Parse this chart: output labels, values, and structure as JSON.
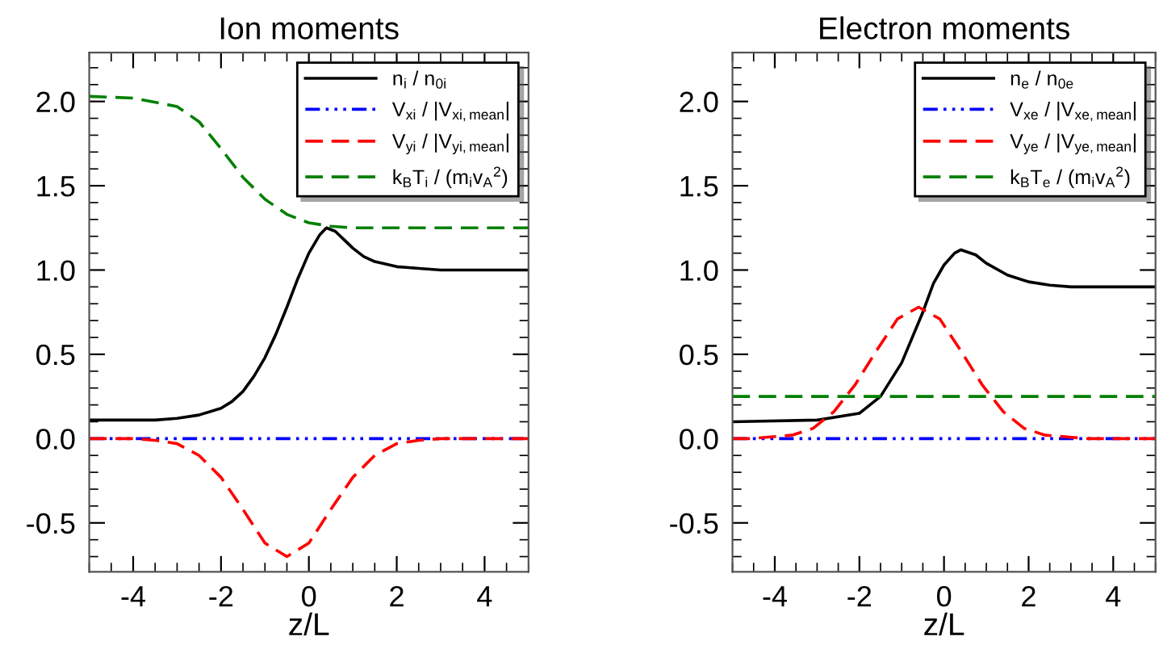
{
  "chart_data": [
    {
      "type": "line",
      "title": "Ion moments",
      "xlabel": "z/L",
      "xlim": [
        -5,
        5
      ],
      "xticks": [
        -4,
        -2,
        0,
        2,
        4
      ],
      "ylim": [
        -0.79,
        2.29
      ],
      "yticks": [
        {
          "value": -0.5,
          "label": "-0.5"
        },
        {
          "value": 0,
          "label": "0.0"
        },
        {
          "value": 0.5,
          "label": "0.5"
        },
        {
          "value": 1,
          "label": "1.0"
        },
        {
          "value": 1.5,
          "label": "1.5"
        },
        {
          "value": 2,
          "label": "2.0"
        }
      ],
      "grid": false,
      "legend": "top right",
      "series": [
        {
          "name": "n$_{i}$ / n$_{0i}$",
          "color": "#000000",
          "line_style": "solid",
          "x": [
            -5,
            -4,
            -3.5,
            -3,
            -2.5,
            -2,
            -1.75,
            -1.5,
            -1.25,
            -1,
            -0.75,
            -0.5,
            -0.25,
            0,
            0.25,
            0.4,
            0.6,
            0.8,
            1,
            1.25,
            1.5,
            2,
            2.5,
            3,
            5
          ],
          "values": [
            0.11,
            0.11,
            0.11,
            0.12,
            0.14,
            0.18,
            0.22,
            0.28,
            0.37,
            0.48,
            0.62,
            0.78,
            0.95,
            1.1,
            1.21,
            1.25,
            1.23,
            1.18,
            1.13,
            1.08,
            1.05,
            1.02,
            1.01,
            1.0,
            1.0
          ]
        },
        {
          "name": "V$_{xi}$ / |V$_{xi,mean}$|",
          "color": "#0000ff",
          "line_style": "dashdot",
          "x": [
            -5,
            5
          ],
          "values": [
            0,
            0
          ]
        },
        {
          "name": "V$_{yi}$ / |V$_{yi,mean}$|",
          "color": "#ff0000",
          "line_style": "dashed",
          "x": [
            -5,
            -4,
            -3.5,
            -3,
            -2.5,
            -2,
            -1.5,
            -1,
            -0.5,
            0,
            0.5,
            1,
            1.5,
            2,
            2.5,
            3,
            5
          ],
          "values": [
            0,
            0,
            -0.01,
            -0.03,
            -0.1,
            -0.23,
            -0.42,
            -0.62,
            -0.7,
            -0.62,
            -0.42,
            -0.23,
            -0.1,
            -0.03,
            -0.01,
            0,
            0
          ]
        },
        {
          "name": "k$_{B}$T$_{i}$ / (m$_{i}$v$_{A}$$^{2}$)",
          "color": "#008000",
          "line_style": "dashed",
          "x": [
            -5,
            -4,
            -3,
            -2.5,
            -2,
            -1.5,
            -1,
            -0.5,
            0,
            0.5,
            1,
            5
          ],
          "values": [
            2.03,
            2.02,
            1.97,
            1.88,
            1.72,
            1.55,
            1.42,
            1.33,
            1.28,
            1.26,
            1.25,
            1.25
          ]
        }
      ]
    },
    {
      "type": "line",
      "title": "Electron moments",
      "xlabel": "z/L",
      "xlim": [
        -5,
        5
      ],
      "xticks": [
        -4,
        -2,
        0,
        2,
        4
      ],
      "ylim": [
        -0.79,
        2.29
      ],
      "yticks": [
        {
          "value": -0.5,
          "label": "-0.5"
        },
        {
          "value": 0,
          "label": "0.0"
        },
        {
          "value": 0.5,
          "label": "0.5"
        },
        {
          "value": 1,
          "label": "1.0"
        },
        {
          "value": 1.5,
          "label": "1.5"
        },
        {
          "value": 2,
          "label": "2.0"
        }
      ],
      "grid": false,
      "legend": "top right",
      "series": [
        {
          "name": "n$_{e}$ / n$_{0e}$",
          "color": "#000000",
          "line_style": "solid",
          "x": [
            -5,
            -3,
            -2,
            -1.5,
            -1,
            -0.5,
            -0.25,
            0,
            0.25,
            0.4,
            0.75,
            1,
            1.5,
            2,
            2.5,
            3,
            5
          ],
          "values": [
            0.1,
            0.11,
            0.15,
            0.25,
            0.45,
            0.75,
            0.92,
            1.03,
            1.1,
            1.12,
            1.09,
            1.04,
            0.97,
            0.93,
            0.91,
            0.9,
            0.9
          ]
        },
        {
          "name": "V$_{xe}$ / |V$_{xe,mean}$|",
          "color": "#0000ff",
          "line_style": "dashdot",
          "x": [
            -5,
            5
          ],
          "values": [
            0,
            0
          ]
        },
        {
          "name": "V$_{ye}$ / |V$_{ye,mean}$|",
          "color": "#ff0000",
          "line_style": "dashed",
          "x": [
            -5,
            -4.6,
            -4.1,
            -3.6,
            -3.1,
            -2.6,
            -2.1,
            -1.6,
            -1.1,
            -0.6,
            -0.1,
            0.4,
            0.9,
            1.4,
            1.9,
            2.4,
            2.9,
            3.4,
            5
          ],
          "values": [
            0,
            0,
            0.01,
            0.02,
            0.06,
            0.16,
            0.32,
            0.52,
            0.71,
            0.78,
            0.71,
            0.52,
            0.32,
            0.16,
            0.06,
            0.02,
            0.01,
            0,
            0
          ]
        },
        {
          "name": "k$_{B}$T$_{e}$ / (m$_{i}$v$_{A}$$^{2}$)",
          "color": "#008000",
          "line_style": "dashed",
          "x": [
            -5,
            5
          ],
          "values": [
            0.25,
            0.25
          ]
        }
      ]
    }
  ]
}
